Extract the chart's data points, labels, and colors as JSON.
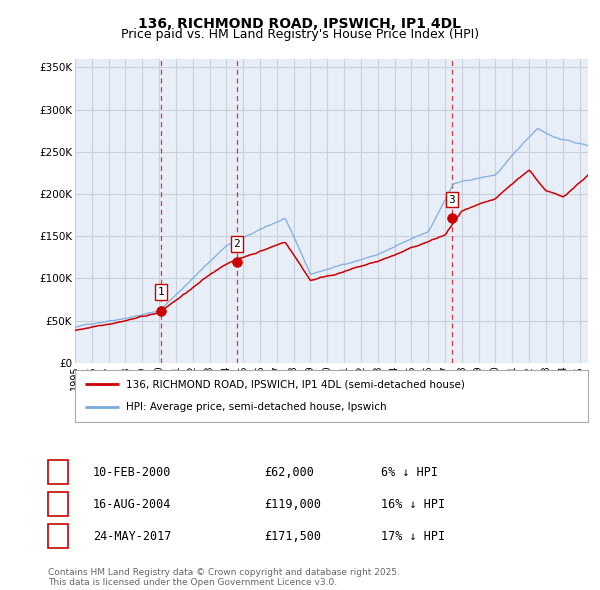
{
  "title": "136, RICHMOND ROAD, IPSWICH, IP1 4DL",
  "subtitle": "Price paid vs. HM Land Registry's House Price Index (HPI)",
  "legend_label_red": "136, RICHMOND ROAD, IPSWICH, IP1 4DL (semi-detached house)",
  "legend_label_blue": "HPI: Average price, semi-detached house, Ipswich",
  "footer": "Contains HM Land Registry data © Crown copyright and database right 2025.\nThis data is licensed under the Open Government Licence v3.0.",
  "transactions": [
    {
      "num": 1,
      "date": "10-FEB-2000",
      "price": "£62,000",
      "hpi": "6% ↓ HPI",
      "year": 2000.12
    },
    {
      "num": 2,
      "date": "16-AUG-2004",
      "price": "£119,000",
      "hpi": "16% ↓ HPI",
      "year": 2004.63
    },
    {
      "num": 3,
      "date": "24-MAY-2017",
      "price": "£171,500",
      "hpi": "17% ↓ HPI",
      "year": 2017.4
    }
  ],
  "sale_years": [
    2000.12,
    2004.63,
    2017.4
  ],
  "sale_prices": [
    62000,
    119000,
    171500
  ],
  "ylim": [
    0,
    360000
  ],
  "xlim_start": 1995.0,
  "xlim_end": 2025.5,
  "yticks": [
    0,
    50000,
    100000,
    150000,
    200000,
    250000,
    300000,
    350000
  ],
  "ytick_labels": [
    "£0",
    "£50K",
    "£100K",
    "£150K",
    "£200K",
    "£250K",
    "£300K",
    "£350K"
  ],
  "xticks": [
    1995,
    1996,
    1997,
    1998,
    1999,
    2000,
    2001,
    2002,
    2003,
    2004,
    2005,
    2006,
    2007,
    2008,
    2009,
    2010,
    2011,
    2012,
    2013,
    2014,
    2015,
    2016,
    2017,
    2018,
    2019,
    2020,
    2021,
    2022,
    2023,
    2024,
    2025
  ],
  "background_color": "#ffffff",
  "plot_bg_color": "#e8eef8",
  "grid_color": "#c8d0dc",
  "red_line_color": "#cc0000",
  "blue_line_color": "#7aaadd",
  "vline_color": "#cc0000",
  "marker_color": "#cc0000",
  "title_fontsize": 10,
  "subtitle_fontsize": 9
}
